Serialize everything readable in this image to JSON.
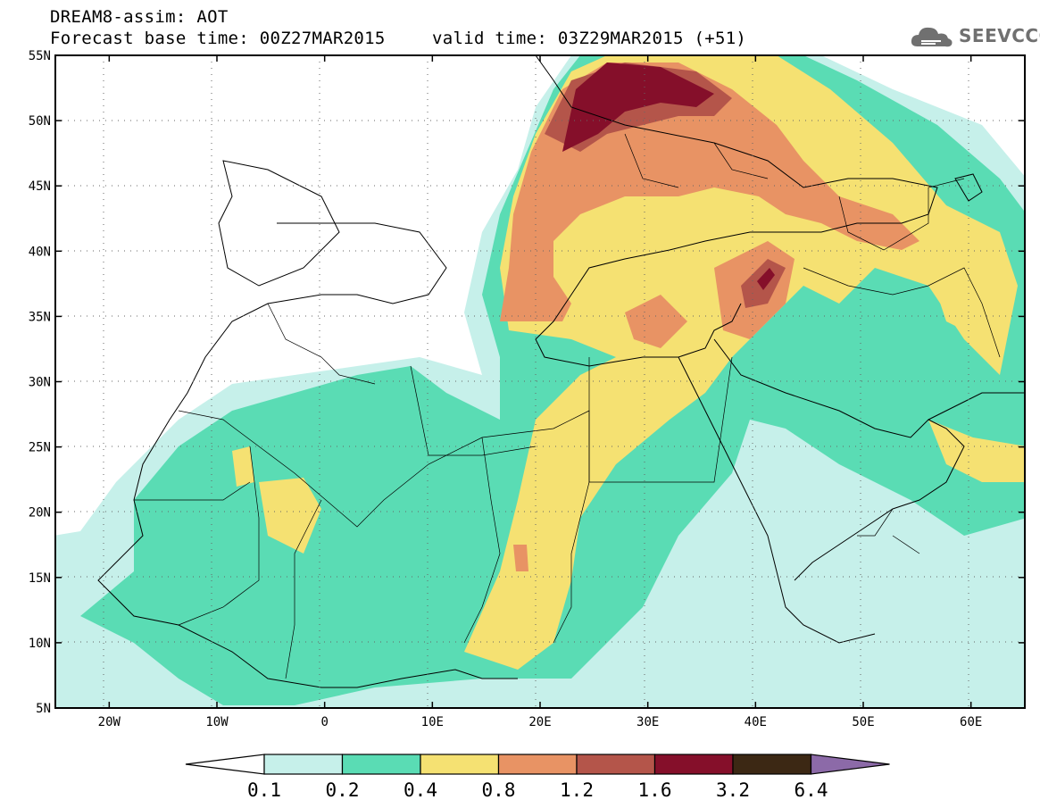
{
  "header": {
    "line1": "DREAM8-assim: AOT",
    "line2": "Forecast base time: 00Z27MAR2015",
    "valid": "valid time: 03Z29MAR2015 (+51)"
  },
  "logo": {
    "text": "SEEVCCC"
  },
  "map": {
    "lon_range": [
      -25,
      65
    ],
    "lat_range": [
      5,
      55
    ],
    "lat_labels": [
      "55N",
      "50N",
      "45N",
      "40N",
      "35N",
      "30N",
      "25N",
      "20N",
      "15N",
      "10N",
      "5N"
    ],
    "lon_labels": [
      "20W",
      "10W",
      "0",
      "10E",
      "20E",
      "30E",
      "40E",
      "50E",
      "60E"
    ],
    "field": "AOT"
  },
  "colorbar": {
    "levels": [
      "0.1",
      "0.2",
      "0.4",
      "0.8",
      "1.2",
      "1.6",
      "3.2",
      "6.4"
    ],
    "colors": [
      "#ffffff",
      "#c6f0ea",
      "#5adcb4",
      "#f5e172",
      "#e89364",
      "#b4554a",
      "#850f2a",
      "#3c2814",
      "#8c6aa8"
    ]
  }
}
